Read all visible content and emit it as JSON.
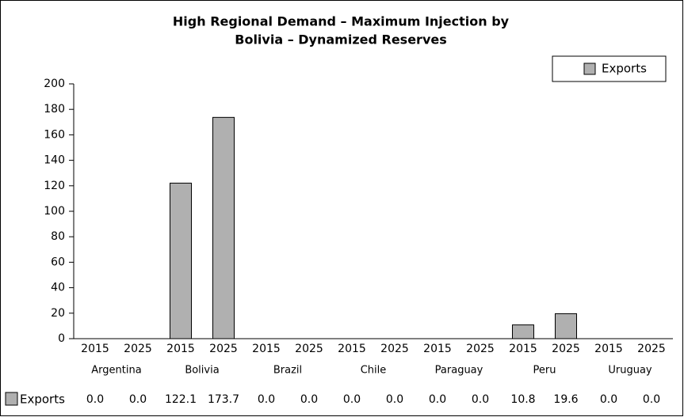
{
  "chart_data": {
    "type": "bar",
    "title": [
      "High Regional Demand – Maximum Injection by",
      "Bolivia – Dynamized Reserves"
    ],
    "categories": [
      "2015",
      "2025",
      "2015",
      "2025",
      "2015",
      "2025",
      "2015",
      "2025",
      "2015",
      "2025",
      "2015",
      "2025",
      "2015",
      "2025"
    ],
    "groups": [
      "Argentina",
      "Bolivia",
      "Brazil",
      "Chile",
      "Paraguay",
      "Peru",
      "Uruguay"
    ],
    "series": [
      {
        "name": "Exports",
        "color": "#b0b0b0",
        "values": [
          0.0,
          0.0,
          122.1,
          173.7,
          0.0,
          0.0,
          0.0,
          0.0,
          0.0,
          0.0,
          10.8,
          19.6,
          0.0,
          0.0
        ],
        "value_labels": [
          "0.0",
          "0.0",
          "122.1",
          "173.7",
          "0.0",
          "0.0",
          "0.0",
          "0.0",
          "0.0",
          "0.0",
          "10.8",
          "19.6",
          "0.0",
          "0.0"
        ]
      }
    ],
    "ylim": [
      0,
      200
    ],
    "yticks": [
      0,
      20,
      40,
      60,
      80,
      100,
      120,
      140,
      160,
      180,
      200
    ],
    "grid": false,
    "legend": "top-right",
    "data_table": true
  }
}
